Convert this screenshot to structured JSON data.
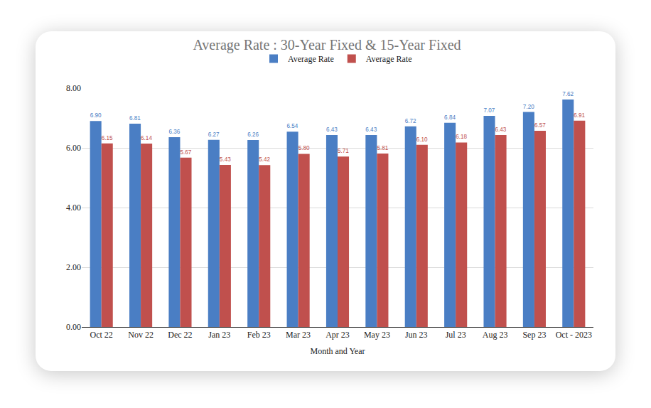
{
  "chart_data": {
    "type": "bar",
    "title": "Average Rate : 30-Year Fixed & 15-Year Fixed",
    "x_label": "Month and Year",
    "categories": [
      "Oct 22",
      "Nov 22",
      "Dec 22",
      "Jan 23",
      "Feb 23",
      "Mar 23",
      "Apr 23",
      "May 23",
      "Jun 23",
      "Jul 23",
      "Aug 23",
      "Sep 23",
      "Oct - 2023"
    ],
    "series": [
      {
        "name": "Average Rate",
        "color": "#4a7ec4",
        "values": [
          6.9,
          6.81,
          6.36,
          6.27,
          6.26,
          6.54,
          6.43,
          6.43,
          6.72,
          6.84,
          7.07,
          7.2,
          7.62
        ],
        "value_labels": [
          "6.90",
          "6.81",
          "6.36",
          "6.27",
          "6.26",
          "6.54",
          "6.43",
          "6.43",
          "6.72",
          "6.84",
          "7.07",
          "7.20",
          "7.62"
        ]
      },
      {
        "name": "Average Rate",
        "color": "#c0504d",
        "values": [
          6.15,
          6.14,
          5.67,
          5.43,
          5.42,
          5.8,
          5.71,
          5.81,
          6.1,
          6.18,
          6.43,
          6.57,
          6.91
        ],
        "value_labels": [
          "6.15",
          "6.14",
          "5.67",
          "5.43",
          "5.42",
          "5.80",
          "5.71",
          "5.81",
          "6.10",
          "6.18",
          "6.43",
          "6.57",
          "6.91"
        ]
      }
    ],
    "ylim": [
      0,
      8
    ],
    "yticks": [
      {
        "value": 0,
        "label": "0.00"
      },
      {
        "value": 2,
        "label": "2.00"
      },
      {
        "value": 4,
        "label": "4.00"
      },
      {
        "value": 6,
        "label": "6.00"
      },
      {
        "value": 8,
        "label": "8.00"
      }
    ],
    "grid": true,
    "legend": "top",
    "data_labels": true
  }
}
